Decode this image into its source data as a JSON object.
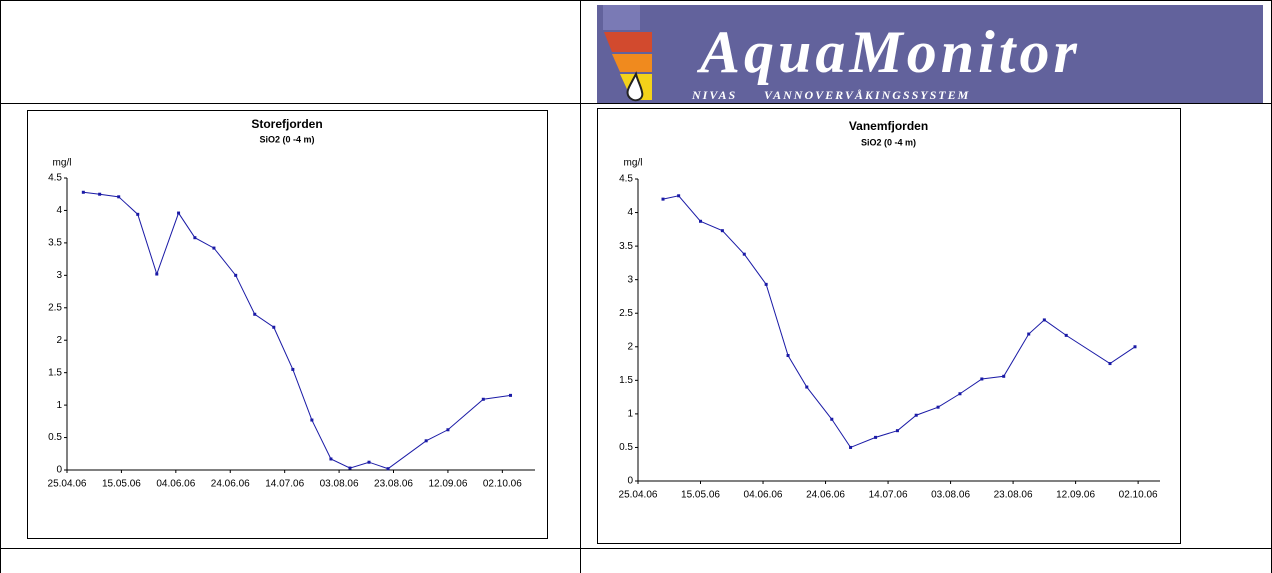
{
  "logo": {
    "title": "AquaMonitor",
    "left": "NIVAS",
    "right": "VANNOVERVÅKINGSSYSTEM"
  },
  "chart_data": [
    {
      "type": "line",
      "title": "Storefjorden",
      "subtitle": "SiO2 (0 -4 m)",
      "y_label": "mg/l",
      "x": [
        "01.05.06",
        "07.05.06",
        "14.05.06",
        "21.05.06",
        "28.05.06",
        "05.06.06",
        "11.06.06",
        "18.06.06",
        "26.06.06",
        "03.07.06",
        "10.07.06",
        "17.07.06",
        "24.07.06",
        "31.07.06",
        "07.08.06",
        "14.08.06",
        "21.08.06",
        "04.09.06",
        "12.09.06",
        "25.09.06",
        "05.10.06"
      ],
      "series": [
        {
          "color": "#1a1aa6",
          "values": [
            4.28,
            4.25,
            4.21,
            3.94,
            3.02,
            3.96,
            3.58,
            3.42,
            3.0,
            2.4,
            2.2,
            1.55,
            0.77,
            0.17,
            0.03,
            0.12,
            0.02,
            0.45,
            0.62,
            1.09,
            1.15
          ]
        }
      ],
      "xlim": [
        "25.04.06",
        "14.10.06"
      ],
      "xticks": [
        "25.04.06",
        "15.05.06",
        "04.06.06",
        "24.06.06",
        "14.07.06",
        "03.08.06",
        "23.08.06",
        "12.09.06",
        "02.10.06"
      ],
      "ylim": [
        0,
        4.5
      ],
      "yticks": [
        0,
        0.5,
        1,
        1.5,
        2,
        2.5,
        3,
        3.5,
        4,
        4.5
      ]
    },
    {
      "type": "line",
      "title": "Vanemfjorden",
      "subtitle": "SiO2 (0 -4 m)",
      "y_label": "mg/l",
      "x": [
        "03.05.06",
        "08.05.06",
        "15.05.06",
        "22.05.06",
        "29.05.06",
        "05.06.06",
        "12.06.06",
        "18.06.06",
        "26.06.06",
        "02.07.06",
        "10.07.06",
        "17.07.06",
        "23.07.06",
        "30.07.06",
        "06.08.06",
        "13.08.06",
        "20.08.06",
        "28.08.06",
        "02.09.06",
        "09.09.06",
        "23.09.06",
        "01.10.06"
      ],
      "series": [
        {
          "color": "#1a1aa6",
          "values": [
            4.2,
            4.25,
            3.87,
            3.73,
            3.38,
            2.93,
            1.87,
            1.4,
            0.92,
            0.5,
            0.65,
            0.75,
            0.98,
            1.1,
            1.3,
            1.52,
            1.56,
            2.19,
            2.4,
            2.17,
            1.75,
            2.0
          ]
        }
      ],
      "xlim": [
        "25.04.06",
        "09.10.06"
      ],
      "xticks": [
        "25.04.06",
        "15.05.06",
        "04.06.06",
        "24.06.06",
        "14.07.06",
        "03.08.06",
        "23.08.06",
        "12.09.06",
        "02.10.06"
      ],
      "ylim": [
        0,
        4.5
      ],
      "yticks": [
        0,
        0.5,
        1,
        1.5,
        2,
        2.5,
        3,
        3.5,
        4,
        4.5
      ]
    }
  ]
}
